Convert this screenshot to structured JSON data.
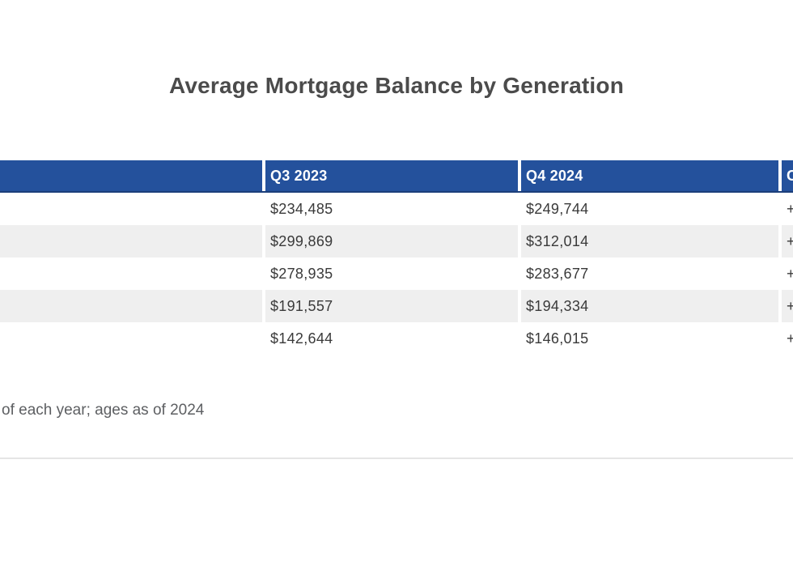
{
  "title": "Average Mortgage Balance by Generation",
  "colors": {
    "header_bg": "#24519c",
    "header_border_bottom": "#1b3e7a",
    "header_text": "#ffffff",
    "zebra_row_bg": "#efefef",
    "title_text": "#4b4b4b",
    "cell_text": "#3a3a3a",
    "note_text": "#5d5f62",
    "divider": "#e5e5e5"
  },
  "footnote": "of each year; ages as of 2024",
  "chart_data": {
    "type": "table",
    "title": "Average Mortgage Balance by Generation",
    "columns": [
      "",
      "Q3 2023",
      "Q4 2024",
      "C"
    ],
    "rows": [
      [
        "",
        "$234,485",
        "$249,744",
        "+"
      ],
      [
        "",
        "$299,869",
        "$312,014",
        "+"
      ],
      [
        "",
        "$278,935",
        "$283,677",
        "+"
      ],
      [
        "",
        "$191,557",
        "$194,334",
        "+"
      ],
      [
        "",
        "$142,644",
        "$146,015",
        "+"
      ]
    ],
    "note": "of each year; ages as of 2024",
    "layout_hints": {
      "cropped_left_column": true,
      "cropped_right_column": true,
      "zebra_striping": true,
      "header_style": "solid-navy-white-text"
    }
  }
}
